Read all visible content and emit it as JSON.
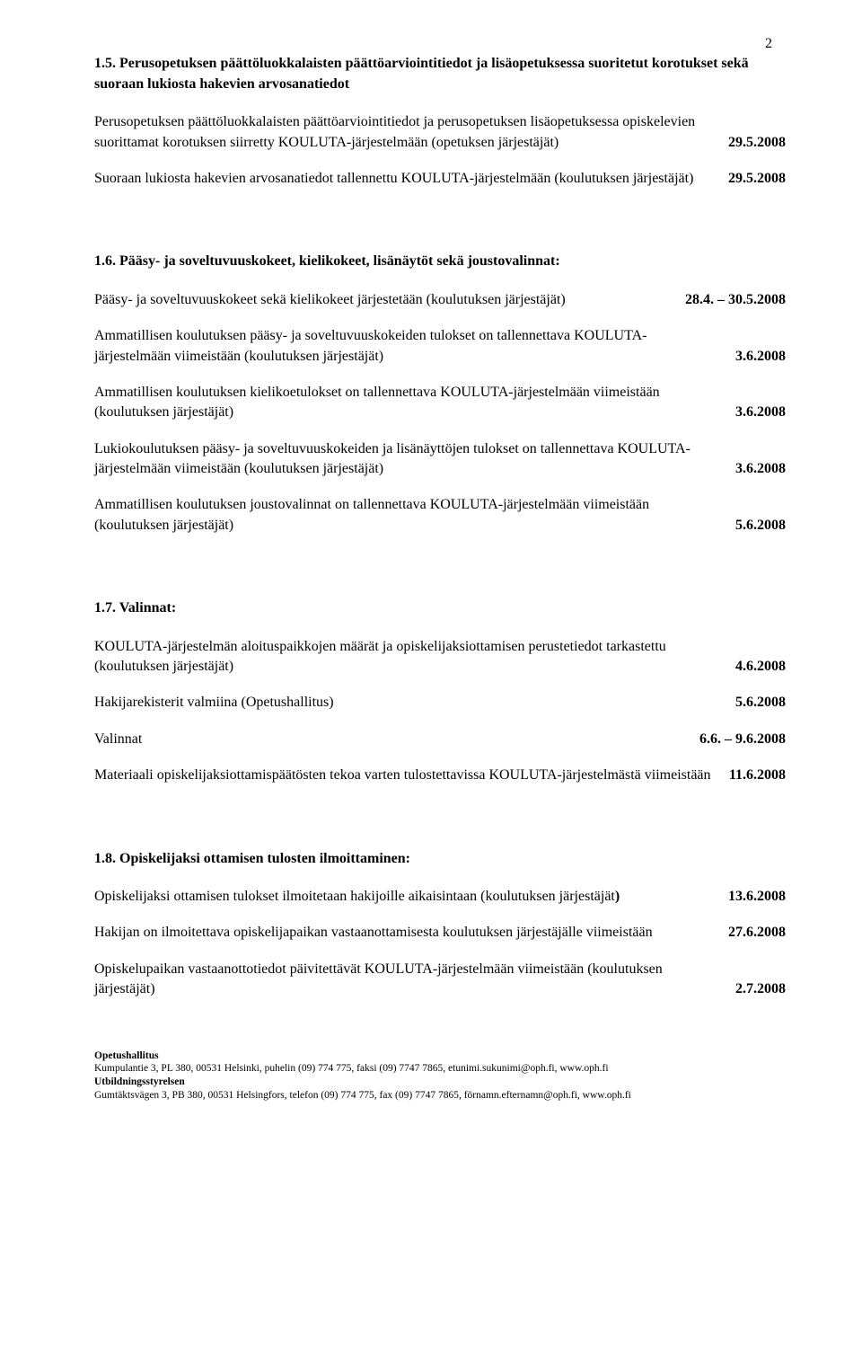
{
  "page_number": "2",
  "section_1_5": {
    "title": "1.5. Perusopetuksen päättöluokkalaisten päättöarviointitiedot ja lisäopetuksessa suoritetut korotukset sekä suoraan lukiosta hakevien arvosanatiedot",
    "items": [
      {
        "text": "Perusopetuksen päättöluokkalaisten päättöarviointitiedot ja perusopetuksen lisäopetuksessa opiskelevien suorittamat korotuksen siirretty KOULUTA-järjestelmään (opetuksen järjestäjät)",
        "date": "29.5.2008",
        "bold": true
      },
      {
        "text": "Suoraan lukiosta hakevien arvosanatiedot tallennettu KOULUTA-järjestelmään (koulutuksen järjestäjät)",
        "date": "29.5.2008",
        "bold": true
      }
    ]
  },
  "section_1_6": {
    "title": "1.6. Pääsy- ja soveltuvuuskokeet, kielikokeet, lisänäytöt sekä joustovalinnat:",
    "items": [
      {
        "text": "Pääsy- ja soveltuvuuskokeet sekä kielikokeet järjestetään (koulutuksen järjestäjät)",
        "date": "28.4. – 30.5.2008",
        "bold": true
      },
      {
        "text": "Ammatillisen koulutuksen pääsy- ja soveltuvuuskokeiden tulokset on tallennettava KOULUTA-järjestelmään viimeistään (koulutuksen järjestäjät)",
        "date": "3.6.2008",
        "bold": true
      },
      {
        "text": "Ammatillisen koulutuksen kielikoetulokset on tallennettava KOULUTA-järjestelmään viimeistään (koulutuksen järjestäjät)",
        "date": "3.6.2008",
        "bold": true
      },
      {
        "text": "Lukiokoulutuksen pääsy- ja soveltuvuuskokeiden ja lisänäyttöjen tulokset on tallennettava KOULUTA-järjestelmään viimeistään (koulutuksen järjestäjät)",
        "date": "3.6.2008",
        "bold": true
      },
      {
        "text": "Ammatillisen koulutuksen joustovalinnat on tallennettava KOULUTA-järjestelmään viimeistään (koulutuksen järjestäjät)",
        "date": "5.6.2008",
        "bold": true
      }
    ]
  },
  "section_1_7": {
    "title": "1.7. Valinnat:",
    "items": [
      {
        "text": "KOULUTA-järjestelmän aloituspaikkojen määrät ja opiskelijaksiottamisen perustetiedot tarkastettu (koulutuksen järjestäjät)",
        "date": "4.6.2008",
        "bold": true
      },
      {
        "text": "Hakijarekisterit valmiina (Opetushallitus)",
        "date": "5.6.2008",
        "bold": true
      },
      {
        "text": "Valinnat",
        "date": "6.6. – 9.6.2008",
        "bold": true
      },
      {
        "text": "Materiaali opiskelijaksiottamispäätösten tekoa varten tulostettavissa KOULUTA-järjestelmästä viimeistään",
        "date": "11.6.2008",
        "bold": true
      }
    ]
  },
  "section_1_8": {
    "title": "1.8. Opiskelijaksi ottamisen tulosten ilmoittaminen:",
    "items": [
      {
        "text_pre": "Opiskelijaksi ottamisen tulokset ilmoitetaan hakijoille aikaisintaan\n (koulutuksen järjestäjät",
        "text_post": "",
        "date": "13.6.2008",
        "bold": true,
        "special_paren": true
      },
      {
        "text": "Hakijan on ilmoitettava opiskelijapaikan vastaanottamisesta koulutuksen järjestäjälle viimeistään",
        "date": "27.6.2008",
        "bold": true
      },
      {
        "text": "Opiskelupaikan vastaanottotiedot päivitettävät KOULUTA-järjestelmään viimeistään (koulutuksen järjestäjät)",
        "date": "2.7.2008",
        "bold": true
      }
    ]
  },
  "footer": {
    "org1": "Opetushallitus",
    "line1": "Kumpulantie 3, PL 380, 00531 Helsinki, puhelin (09) 774 775, faksi (09) 7747 7865, etunimi.sukunimi@oph.fi, www.oph.fi",
    "org2": "Utbildningsstyrelsen",
    "line2": "Gumtäktsvägen 3, PB 380, 00531 Helsingfors, telefon (09) 774 775, fax (09) 7747 7865, förnamn.efternamn@oph.fi, www.oph.fi"
  }
}
